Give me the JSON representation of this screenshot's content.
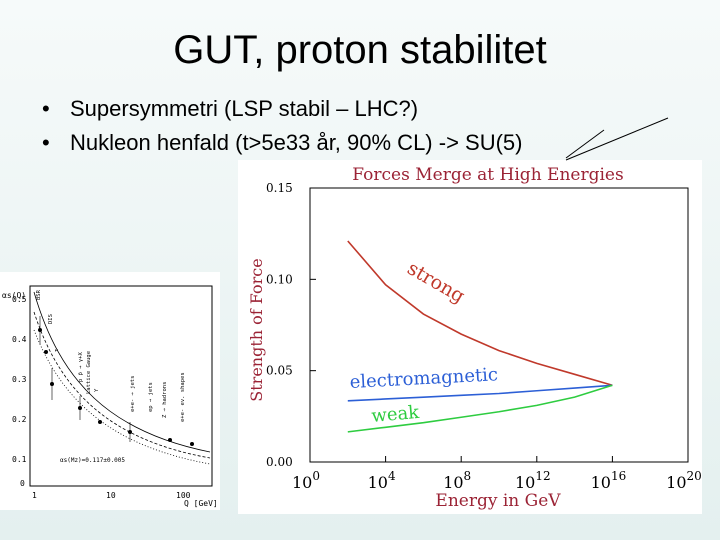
{
  "slide": {
    "title": "GUT, proton stabilitet",
    "bullets": [
      "Supersymmetri (LSP stabil – LHC?)",
      "Nukleon henfald (t>5e33 år, 90% CL) -> SU(5)"
    ],
    "bullet_symbol": "•"
  },
  "small_plot": {
    "ylabel": "αs(Q)",
    "xlabel": "Q [GeV]",
    "y_ticks": [
      "0.5",
      "0.4",
      "0.3",
      "0.2",
      "0.1",
      "0"
    ],
    "x_ticks": [
      "1",
      "10",
      "100"
    ],
    "fit_label": "αs(Mz)=0.117±0.005",
    "annotations": [
      "BSR",
      "DIS",
      "τ",
      "Lattice Gauge",
      "Υ",
      "e+e- → jets",
      "p p̄ → γ+X",
      "ep → jets",
      "Z → hadrons",
      "e+e- ev. shapes"
    ]
  },
  "chart_data": {
    "type": "line",
    "title": "Forces Merge at High Energies",
    "xlabel": "Energy in GeV",
    "ylabel": "Strength of Force",
    "x_scale": "log10",
    "xlim_exponent": [
      0,
      20
    ],
    "ylim": [
      0.0,
      0.15
    ],
    "x_tick_labels": [
      {
        "base": "10",
        "exp": "0",
        "value": 0
      },
      {
        "base": "10",
        "exp": "4",
        "value": 4
      },
      {
        "base": "10",
        "exp": "8",
        "value": 8
      },
      {
        "base": "10",
        "exp": "12",
        "value": 12
      },
      {
        "base": "10",
        "exp": "16",
        "value": 16
      },
      {
        "base": "10",
        "exp": "20",
        "value": 20
      }
    ],
    "y_tick_labels": [
      {
        "label": "0.15",
        "value": 0.15
      },
      {
        "label": "0.10",
        "value": 0.1
      },
      {
        "label": "0.05",
        "value": 0.05
      },
      {
        "label": "0.00",
        "value": 0.0
      }
    ],
    "series": [
      {
        "name": "strong",
        "color": "#c0392b",
        "x": [
          2,
          4,
          6,
          8,
          10,
          12,
          14,
          16
        ],
        "y": [
          0.121,
          0.097,
          0.081,
          0.07,
          0.061,
          0.054,
          0.048,
          0.042
        ]
      },
      {
        "name": "electromagnetic",
        "color": "#2c5fd6",
        "x": [
          2,
          4,
          6,
          8,
          10,
          12,
          14,
          16
        ],
        "y": [
          0.0335,
          0.0345,
          0.0355,
          0.0365,
          0.0375,
          0.039,
          0.0405,
          0.042
        ]
      },
      {
        "name": "weak",
        "color": "#2ecc40",
        "x": [
          2,
          4,
          6,
          8,
          10,
          12,
          14,
          16
        ],
        "y": [
          0.0165,
          0.019,
          0.0215,
          0.0245,
          0.0275,
          0.031,
          0.0355,
          0.042
        ]
      }
    ],
    "series_labels": [
      {
        "text": "strong",
        "color": "#c0392b"
      },
      {
        "text": "electromagnetic",
        "color": "#2c5fd6"
      },
      {
        "text": "weak",
        "color": "#2ecc40"
      }
    ]
  }
}
